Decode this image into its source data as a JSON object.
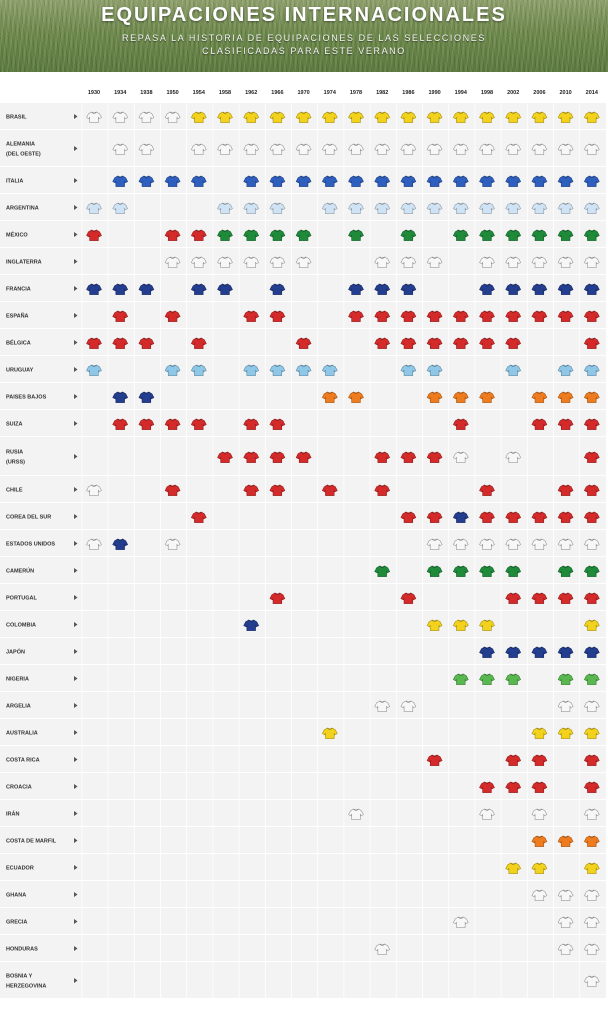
{
  "header": {
    "title": "EQUIPACIONES INTERNACIONALES",
    "subtitle_line1": "REPASA LA HISTORIA DE EQUIPACIONES DE LAS SELECCIONES",
    "subtitle_line2": "CLASIFICADAS PARA ESTE VERANO"
  },
  "row_arrow_icon": "triangle-right-icon",
  "chart_data": {
    "type": "table",
    "years": [
      "1930",
      "1934",
      "1938",
      "1950",
      "1954",
      "1958",
      "1962",
      "1966",
      "1970",
      "1974",
      "1978",
      "1982",
      "1986",
      "1990",
      "1994",
      "1998",
      "2002",
      "2006",
      "2010",
      "2014"
    ],
    "teams": [
      {
        "label": [
          "BRASIL"
        ],
        "shirts": [
          0,
          0,
          0,
          0,
          6,
          6,
          6,
          6,
          6,
          6,
          6,
          6,
          6,
          6,
          6,
          6,
          6,
          6,
          6,
          6
        ]
      },
      {
        "label": [
          "ALEMANIA",
          "(DEL OESTE)"
        ],
        "shirts": [
          -1,
          0,
          0,
          -1,
          0,
          0,
          0,
          0,
          0,
          0,
          0,
          0,
          0,
          0,
          0,
          0,
          0,
          0,
          0,
          0
        ]
      },
      {
        "label": [
          "ITALIA"
        ],
        "shirts": [
          -1,
          5,
          5,
          5,
          5,
          -1,
          5,
          5,
          5,
          5,
          5,
          5,
          5,
          5,
          5,
          5,
          5,
          5,
          5,
          5
        ]
      },
      {
        "label": [
          "ARGENTINA"
        ],
        "shirts": [
          1,
          1,
          -1,
          -1,
          -1,
          1,
          1,
          1,
          -1,
          1,
          1,
          1,
          1,
          1,
          1,
          1,
          1,
          1,
          1,
          1
        ]
      },
      {
        "label": [
          "MÉXICO"
        ],
        "shirts": [
          3,
          -1,
          -1,
          3,
          3,
          2,
          2,
          2,
          2,
          -1,
          2,
          -1,
          2,
          -1,
          2,
          2,
          2,
          2,
          2,
          2
        ]
      },
      {
        "label": [
          "INGLATERRA"
        ],
        "shirts": [
          -1,
          -1,
          -1,
          0,
          0,
          0,
          0,
          0,
          0,
          -1,
          -1,
          0,
          0,
          0,
          -1,
          0,
          0,
          0,
          0,
          0
        ]
      },
      {
        "label": [
          "FRANCIA"
        ],
        "shirts": [
          4,
          4,
          4,
          -1,
          4,
          4,
          -1,
          4,
          -1,
          -1,
          4,
          4,
          4,
          -1,
          -1,
          4,
          4,
          4,
          4,
          4
        ]
      },
      {
        "label": [
          "ESPAÑA"
        ],
        "shirts": [
          -1,
          3,
          -1,
          3,
          -1,
          -1,
          3,
          3,
          -1,
          -1,
          3,
          3,
          3,
          3,
          3,
          3,
          3,
          3,
          3,
          3
        ]
      },
      {
        "label": [
          "BÉLGICA"
        ],
        "shirts": [
          3,
          3,
          3,
          -1,
          3,
          -1,
          -1,
          -1,
          3,
          -1,
          -1,
          3,
          3,
          3,
          3,
          3,
          3,
          -1,
          -1,
          3
        ]
      },
      {
        "label": [
          "URUGUAY"
        ],
        "shirts": [
          8,
          -1,
          -1,
          8,
          8,
          -1,
          8,
          8,
          8,
          8,
          -1,
          -1,
          8,
          8,
          -1,
          -1,
          8,
          -1,
          8,
          8
        ]
      },
      {
        "label": [
          "PAISES BAJOS"
        ],
        "shirts": [
          -1,
          4,
          4,
          -1,
          -1,
          -1,
          -1,
          -1,
          -1,
          9,
          9,
          -1,
          -1,
          9,
          9,
          9,
          -1,
          9,
          9,
          9
        ]
      },
      {
        "label": [
          "SUIZA"
        ],
        "shirts": [
          -1,
          3,
          3,
          3,
          3,
          -1,
          3,
          3,
          -1,
          -1,
          -1,
          -1,
          -1,
          -1,
          3,
          -1,
          -1,
          3,
          3,
          3
        ]
      },
      {
        "label": [
          "RUSIA",
          "(URSS)"
        ],
        "shirts": [
          -1,
          -1,
          -1,
          -1,
          -1,
          3,
          3,
          3,
          3,
          -1,
          -1,
          3,
          3,
          3,
          0,
          -1,
          0,
          -1,
          -1,
          3
        ]
      },
      {
        "label": [
          "CHILE"
        ],
        "shirts": [
          0,
          -1,
          -1,
          3,
          -1,
          -1,
          3,
          3,
          -1,
          3,
          -1,
          3,
          -1,
          -1,
          -1,
          3,
          -1,
          -1,
          3,
          3
        ]
      },
      {
        "label": [
          "COREA DEL SUR"
        ],
        "shirts": [
          -1,
          -1,
          -1,
          -1,
          3,
          -1,
          -1,
          -1,
          -1,
          -1,
          -1,
          -1,
          3,
          3,
          4,
          3,
          3,
          3,
          3,
          3
        ]
      },
      {
        "label": [
          "ESTADOS UNIDOS"
        ],
        "shirts": [
          0,
          4,
          -1,
          0,
          -1,
          -1,
          -1,
          -1,
          -1,
          -1,
          -1,
          -1,
          -1,
          0,
          0,
          0,
          0,
          0,
          0,
          0
        ]
      },
      {
        "label": [
          "CAMERÚN"
        ],
        "shirts": [
          -1,
          -1,
          -1,
          -1,
          -1,
          -1,
          -1,
          -1,
          -1,
          -1,
          -1,
          2,
          -1,
          2,
          2,
          2,
          2,
          -1,
          2,
          2
        ]
      },
      {
        "label": [
          "PORTUGAL"
        ],
        "shirts": [
          -1,
          -1,
          -1,
          -1,
          -1,
          -1,
          -1,
          3,
          -1,
          -1,
          -1,
          -1,
          3,
          -1,
          -1,
          -1,
          3,
          3,
          3,
          3
        ]
      },
      {
        "label": [
          "COLOMBIA"
        ],
        "shirts": [
          -1,
          -1,
          -1,
          -1,
          -1,
          -1,
          4,
          -1,
          -1,
          -1,
          -1,
          -1,
          -1,
          6,
          6,
          6,
          -1,
          -1,
          -1,
          6
        ]
      },
      {
        "label": [
          "JAPÓN"
        ],
        "shirts": [
          -1,
          -1,
          -1,
          -1,
          -1,
          -1,
          -1,
          -1,
          -1,
          -1,
          -1,
          -1,
          -1,
          -1,
          -1,
          4,
          4,
          4,
          4,
          4
        ]
      },
      {
        "label": [
          "NIGERIA"
        ],
        "shirts": [
          -1,
          -1,
          -1,
          -1,
          -1,
          -1,
          -1,
          -1,
          -1,
          -1,
          -1,
          -1,
          -1,
          -1,
          7,
          7,
          7,
          -1,
          7,
          7
        ]
      },
      {
        "label": [
          "ARGELIA"
        ],
        "shirts": [
          -1,
          -1,
          -1,
          -1,
          -1,
          -1,
          -1,
          -1,
          -1,
          -1,
          -1,
          0,
          0,
          -1,
          -1,
          -1,
          -1,
          -1,
          0,
          0
        ]
      },
      {
        "label": [
          "AUSTRALIA"
        ],
        "shirts": [
          -1,
          -1,
          -1,
          -1,
          -1,
          -1,
          -1,
          -1,
          -1,
          6,
          -1,
          -1,
          -1,
          -1,
          -1,
          -1,
          -1,
          6,
          6,
          6
        ]
      },
      {
        "label": [
          "COSTA RICA"
        ],
        "shirts": [
          -1,
          -1,
          -1,
          -1,
          -1,
          -1,
          -1,
          -1,
          -1,
          -1,
          -1,
          -1,
          -1,
          3,
          -1,
          -1,
          3,
          3,
          -1,
          3
        ]
      },
      {
        "label": [
          "CROACIA"
        ],
        "shirts": [
          -1,
          -1,
          -1,
          -1,
          -1,
          -1,
          -1,
          -1,
          -1,
          -1,
          -1,
          -1,
          -1,
          -1,
          -1,
          3,
          3,
          3,
          -1,
          3
        ]
      },
      {
        "label": [
          "IRÁN"
        ],
        "shirts": [
          -1,
          -1,
          -1,
          -1,
          -1,
          -1,
          -1,
          -1,
          -1,
          -1,
          0,
          -1,
          -1,
          -1,
          -1,
          0,
          -1,
          0,
          -1,
          0
        ]
      },
      {
        "label": [
          "COSTA DE MARFIL"
        ],
        "shirts": [
          -1,
          -1,
          -1,
          -1,
          -1,
          -1,
          -1,
          -1,
          -1,
          -1,
          -1,
          -1,
          -1,
          -1,
          -1,
          -1,
          -1,
          9,
          9,
          9
        ]
      },
      {
        "label": [
          "ECUADOR"
        ],
        "shirts": [
          -1,
          -1,
          -1,
          -1,
          -1,
          -1,
          -1,
          -1,
          -1,
          -1,
          -1,
          -1,
          -1,
          -1,
          -1,
          -1,
          6,
          6,
          -1,
          6
        ]
      },
      {
        "label": [
          "GHANA"
        ],
        "shirts": [
          -1,
          -1,
          -1,
          -1,
          -1,
          -1,
          -1,
          -1,
          -1,
          -1,
          -1,
          -1,
          -1,
          -1,
          -1,
          -1,
          -1,
          0,
          0,
          0
        ]
      },
      {
        "label": [
          "GRECIA"
        ],
        "shirts": [
          -1,
          -1,
          -1,
          -1,
          -1,
          -1,
          -1,
          -1,
          -1,
          -1,
          -1,
          -1,
          -1,
          -1,
          0,
          -1,
          -1,
          -1,
          0,
          0
        ]
      },
      {
        "label": [
          "HONDURAS"
        ],
        "shirts": [
          -1,
          -1,
          -1,
          -1,
          -1,
          -1,
          -1,
          -1,
          -1,
          -1,
          -1,
          0,
          -1,
          -1,
          -1,
          -1,
          -1,
          -1,
          0,
          0
        ]
      },
      {
        "label": [
          "BOSNIA Y",
          "HERZEGOVINA"
        ],
        "shirts": [
          -1,
          -1,
          -1,
          -1,
          -1,
          -1,
          -1,
          -1,
          -1,
          -1,
          -1,
          -1,
          -1,
          -1,
          -1,
          -1,
          -1,
          -1,
          -1,
          0
        ]
      }
    ],
    "shirt_colors": [
      "#f7f7f7",
      "#cfe3f5",
      "#1e8a3a",
      "#d42a2a",
      "#233d8f",
      "#2e5fbf",
      "#f2d21c",
      "#58b84f",
      "#8ec7e8",
      "#ee7c1e"
    ],
    "shirt_code_note": "-1 = no participation; otherwise index into shirt_colors"
  }
}
